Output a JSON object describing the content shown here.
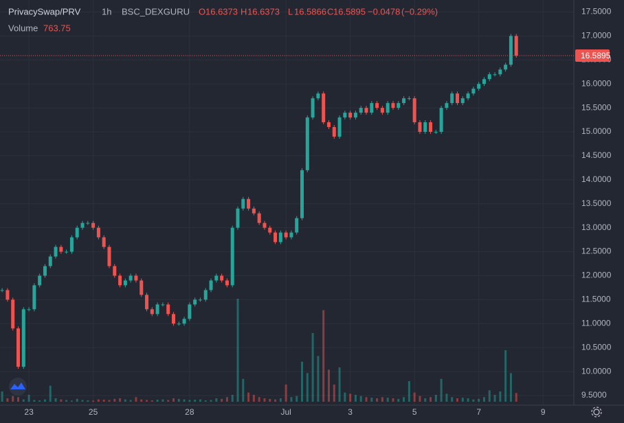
{
  "header": {
    "symbol": "PrivacySwap/PRV",
    "interval": "1h",
    "exchange": "BSC_DEXGURU",
    "open_label": "O",
    "open": "16.6373",
    "high_label": "H",
    "high": "16.6373",
    "low_label": "L",
    "low": "16.5866",
    "close_label": "C",
    "close": "16.5895",
    "change": "−0.0478",
    "change_pct": "(−0.29%)",
    "volume_label": "Volume",
    "volume": "763.75"
  },
  "chart_data": {
    "type": "candlestick",
    "up_color": "#26a69a",
    "down_color": "#ef5350",
    "x": [
      -20,
      -16,
      -12,
      -8,
      -4,
      0,
      4,
      8,
      12,
      16,
      20,
      24,
      28,
      32,
      36,
      40,
      44,
      48,
      52,
      56,
      60,
      64,
      68,
      72,
      76,
      80,
      84,
      88,
      92,
      96,
      100,
      104,
      108,
      112,
      116,
      120,
      124,
      128,
      132,
      136,
      140,
      144,
      148,
      152,
      156,
      160,
      164,
      168,
      172,
      176,
      180,
      184,
      188,
      192,
      196,
      200,
      204,
      208,
      212,
      216,
      220,
      224,
      228,
      232,
      236,
      240,
      244,
      248,
      252,
      256,
      260,
      264,
      268,
      272,
      276,
      280,
      284,
      288,
      292,
      296,
      300,
      304,
      308,
      312,
      316,
      320,
      324,
      328,
      332,
      336,
      340,
      344,
      348,
      352,
      356,
      360,
      364
    ],
    "close": [
      11.7,
      11.5,
      10.9,
      10.1,
      11.3,
      11.3,
      11.8,
      12.0,
      12.2,
      12.4,
      12.6,
      12.5,
      12.5,
      12.8,
      13.0,
      13.1,
      13.1,
      13.0,
      12.8,
      12.6,
      12.2,
      12.0,
      11.8,
      11.9,
      12.0,
      11.9,
      11.6,
      11.3,
      11.2,
      11.4,
      11.4,
      11.2,
      11.0,
      11.0,
      11.1,
      11.4,
      11.5,
      11.5,
      11.7,
      11.9,
      12.0,
      11.9,
      11.8,
      13.0,
      13.4,
      13.6,
      13.4,
      13.3,
      13.1,
      13.0,
      12.9,
      12.7,
      12.9,
      12.8,
      12.9,
      13.2,
      14.2,
      15.3,
      15.7,
      15.8,
      15.2,
      15.1,
      14.9,
      15.3,
      15.4,
      15.3,
      15.4,
      15.5,
      15.4,
      15.6,
      15.5,
      15.4,
      15.6,
      15.5,
      15.6,
      15.7,
      15.7,
      15.2,
      15.0,
      15.2,
      15.0,
      15.0,
      15.5,
      15.6,
      15.8,
      15.6,
      15.7,
      15.8,
      15.9,
      16.0,
      16.1,
      16.2,
      16.2,
      16.3,
      16.4,
      17.0,
      16.59
    ],
    "volume": [
      900,
      300,
      500,
      400,
      200,
      600,
      150,
      120,
      200,
      1400,
      300,
      200,
      150,
      100,
      250,
      150,
      120,
      100,
      200,
      180,
      150,
      250,
      300,
      200,
      150,
      400,
      200,
      150,
      120,
      180,
      200,
      150,
      300,
      250,
      200,
      150,
      180,
      200,
      120,
      150,
      300,
      250,
      400,
      600,
      9000,
      2000,
      800,
      600,
      400,
      300,
      250,
      200,
      300,
      1500,
      400,
      500,
      3500,
      2500,
      6000,
      4000,
      8000,
      2800,
      1500,
      3000,
      800,
      700,
      600,
      500,
      400,
      350,
      300,
      400,
      350,
      300,
      250,
      400,
      1800,
      800,
      500,
      300,
      400,
      600,
      2000,
      700,
      400,
      300,
      350,
      300,
      200,
      250,
      400,
      1000,
      600,
      900,
      4500,
      2500,
      763.75
    ],
    "last_price": {
      "value": 16.5895,
      "label": "16.5895"
    },
    "ylim": [
      9.3,
      17.75
    ],
    "yticks": [
      {
        "value": 9.5,
        "label": "9.5000"
      },
      {
        "value": 10,
        "label": "10.0000"
      },
      {
        "value": 10.5,
        "label": "10.5000"
      },
      {
        "value": 11,
        "label": "11.0000"
      },
      {
        "value": 11.5,
        "label": "11.5000"
      },
      {
        "value": 12,
        "label": "12.0000"
      },
      {
        "value": 12.5,
        "label": "12.5000"
      },
      {
        "value": 13,
        "label": "13.0000"
      },
      {
        "value": 13.5,
        "label": "13.5000"
      },
      {
        "value": 14,
        "label": "14.0000"
      },
      {
        "value": 14.5,
        "label": "14.5000"
      },
      {
        "value": 15,
        "label": "15.0000"
      },
      {
        "value": 15.5,
        "label": "15.5000"
      },
      {
        "value": 16,
        "label": "16.0000"
      },
      {
        "value": 16.5,
        "label": "16.5000"
      },
      {
        "value": 17,
        "label": "17.0000"
      },
      {
        "value": 17.5,
        "label": "17.5000"
      }
    ],
    "xlim": [
      -21.6,
      407
    ],
    "xticks": [
      {
        "value": 0,
        "label": "23"
      },
      {
        "value": 48,
        "label": "25"
      },
      {
        "value": 120,
        "label": "28"
      },
      {
        "value": 192,
        "label": "Jul"
      },
      {
        "value": 240,
        "label": "3"
      },
      {
        "value": 288,
        "label": "5"
      },
      {
        "value": 336,
        "label": "7"
      },
      {
        "value": 384,
        "label": "9"
      }
    ],
    "grid": true
  }
}
